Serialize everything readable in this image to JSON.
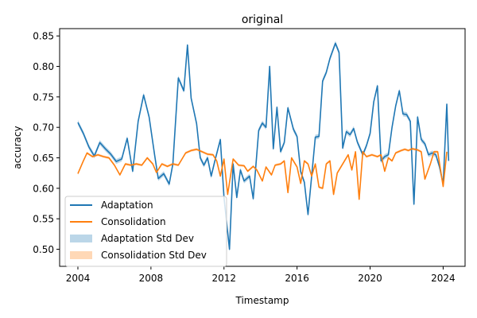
{
  "chart_data": {
    "type": "line",
    "title": "original",
    "xlabel": "Timestamp",
    "ylabel": "accuracy",
    "xlim": [
      2003.0,
      2025.2
    ],
    "ylim": [
      0.472,
      0.862
    ],
    "x_ticks": [
      2004,
      2008,
      2012,
      2016,
      2020,
      2024
    ],
    "y_ticks": [
      0.5,
      0.55,
      0.6,
      0.65,
      0.7,
      0.75,
      0.8,
      0.85
    ],
    "grid": false,
    "legend_position": "lower-left",
    "series": [
      {
        "name": "Adaptation",
        "color": "#1f77b4",
        "points": [
          [
            2004.0,
            0.708
          ],
          [
            2004.3,
            0.69
          ],
          [
            2004.6,
            0.668
          ],
          [
            2004.9,
            0.653
          ],
          [
            2005.2,
            0.675
          ],
          [
            2005.5,
            0.665
          ],
          [
            2005.8,
            0.656
          ],
          [
            2006.1,
            0.644
          ],
          [
            2006.4,
            0.648
          ],
          [
            2006.7,
            0.682
          ],
          [
            2007.0,
            0.628
          ],
          [
            2007.3,
            0.71
          ],
          [
            2007.6,
            0.753
          ],
          [
            2007.9,
            0.717
          ],
          [
            2008.2,
            0.655
          ],
          [
            2008.4,
            0.616
          ],
          [
            2008.7,
            0.624
          ],
          [
            2009.0,
            0.607
          ],
          [
            2009.2,
            0.64
          ],
          [
            2009.5,
            0.781
          ],
          [
            2009.8,
            0.76
          ],
          [
            2010.0,
            0.835
          ],
          [
            2010.2,
            0.748
          ],
          [
            2010.5,
            0.706
          ],
          [
            2010.7,
            0.65
          ],
          [
            2010.9,
            0.638
          ],
          [
            2011.1,
            0.65
          ],
          [
            2011.3,
            0.62
          ],
          [
            2011.5,
            0.645
          ],
          [
            2011.8,
            0.68
          ],
          [
            2012.0,
            0.585
          ],
          [
            2012.3,
            0.5
          ],
          [
            2012.5,
            0.64
          ],
          [
            2012.7,
            0.585
          ],
          [
            2012.9,
            0.63
          ],
          [
            2013.1,
            0.612
          ],
          [
            2013.4,
            0.62
          ],
          [
            2013.6,
            0.583
          ],
          [
            2013.9,
            0.695
          ],
          [
            2014.1,
            0.707
          ],
          [
            2014.3,
            0.7
          ],
          [
            2014.5,
            0.8
          ],
          [
            2014.7,
            0.665
          ],
          [
            2014.9,
            0.733
          ],
          [
            2015.1,
            0.66
          ],
          [
            2015.3,
            0.675
          ],
          [
            2015.5,
            0.732
          ],
          [
            2015.8,
            0.697
          ],
          [
            2016.0,
            0.685
          ],
          [
            2016.2,
            0.627
          ],
          [
            2016.4,
            0.61
          ],
          [
            2016.6,
            0.557
          ],
          [
            2016.8,
            0.62
          ],
          [
            2017.0,
            0.684
          ],
          [
            2017.2,
            0.685
          ],
          [
            2017.4,
            0.776
          ],
          [
            2017.6,
            0.79
          ],
          [
            2017.8,
            0.813
          ],
          [
            2018.1,
            0.838
          ],
          [
            2018.3,
            0.823
          ],
          [
            2018.5,
            0.666
          ],
          [
            2018.7,
            0.693
          ],
          [
            2018.9,
            0.688
          ],
          [
            2019.1,
            0.698
          ],
          [
            2019.3,
            0.676
          ],
          [
            2019.6,
            0.655
          ],
          [
            2019.8,
            0.67
          ],
          [
            2020.0,
            0.69
          ],
          [
            2020.2,
            0.742
          ],
          [
            2020.4,
            0.768
          ],
          [
            2020.6,
            0.645
          ],
          [
            2020.8,
            0.652
          ],
          [
            2021.0,
            0.655
          ],
          [
            2021.2,
            0.7
          ],
          [
            2021.4,
            0.735
          ],
          [
            2021.6,
            0.76
          ],
          [
            2021.8,
            0.722
          ],
          [
            2022.0,
            0.721
          ],
          [
            2022.2,
            0.71
          ],
          [
            2022.4,
            0.574
          ],
          [
            2022.6,
            0.717
          ],
          [
            2022.8,
            0.68
          ],
          [
            2023.0,
            0.673
          ],
          [
            2023.2,
            0.655
          ],
          [
            2023.4,
            0.658
          ],
          [
            2023.6,
            0.655
          ],
          [
            2023.8,
            0.635
          ],
          [
            2024.0,
            0.607
          ],
          [
            2024.2,
            0.738
          ],
          [
            2024.3,
            0.645
          ]
        ]
      },
      {
        "name": "Consolidation",
        "color": "#ff7f0e",
        "points": [
          [
            2004.0,
            0.624
          ],
          [
            2004.3,
            0.645
          ],
          [
            2004.5,
            0.658
          ],
          [
            2004.8,
            0.652
          ],
          [
            2005.1,
            0.655
          ],
          [
            2005.4,
            0.652
          ],
          [
            2005.7,
            0.65
          ],
          [
            2006.0,
            0.638
          ],
          [
            2006.3,
            0.622
          ],
          [
            2006.6,
            0.64
          ],
          [
            2006.9,
            0.638
          ],
          [
            2007.2,
            0.64
          ],
          [
            2007.5,
            0.638
          ],
          [
            2007.8,
            0.65
          ],
          [
            2008.1,
            0.64
          ],
          [
            2008.3,
            0.626
          ],
          [
            2008.6,
            0.64
          ],
          [
            2008.9,
            0.636
          ],
          [
            2009.2,
            0.64
          ],
          [
            2009.5,
            0.638
          ],
          [
            2009.9,
            0.658
          ],
          [
            2010.2,
            0.662
          ],
          [
            2010.5,
            0.664
          ],
          [
            2010.8,
            0.66
          ],
          [
            2011.1,
            0.656
          ],
          [
            2011.4,
            0.655
          ],
          [
            2011.6,
            0.645
          ],
          [
            2011.8,
            0.62
          ],
          [
            2012.0,
            0.648
          ],
          [
            2012.2,
            0.59
          ],
          [
            2012.5,
            0.648
          ],
          [
            2012.8,
            0.638
          ],
          [
            2013.1,
            0.637
          ],
          [
            2013.3,
            0.628
          ],
          [
            2013.6,
            0.636
          ],
          [
            2013.8,
            0.63
          ],
          [
            2014.1,
            0.612
          ],
          [
            2014.3,
            0.635
          ],
          [
            2014.6,
            0.622
          ],
          [
            2014.8,
            0.638
          ],
          [
            2015.1,
            0.64
          ],
          [
            2015.3,
            0.645
          ],
          [
            2015.5,
            0.593
          ],
          [
            2015.7,
            0.65
          ],
          [
            2016.0,
            0.635
          ],
          [
            2016.2,
            0.608
          ],
          [
            2016.4,
            0.645
          ],
          [
            2016.6,
            0.64
          ],
          [
            2016.8,
            0.62
          ],
          [
            2017.0,
            0.64
          ],
          [
            2017.2,
            0.602
          ],
          [
            2017.4,
            0.6
          ],
          [
            2017.6,
            0.64
          ],
          [
            2017.8,
            0.645
          ],
          [
            2018.0,
            0.59
          ],
          [
            2018.2,
            0.625
          ],
          [
            2018.5,
            0.64
          ],
          [
            2018.8,
            0.655
          ],
          [
            2019.0,
            0.63
          ],
          [
            2019.2,
            0.66
          ],
          [
            2019.4,
            0.582
          ],
          [
            2019.6,
            0.66
          ],
          [
            2019.8,
            0.652
          ],
          [
            2020.1,
            0.655
          ],
          [
            2020.4,
            0.652
          ],
          [
            2020.6,
            0.655
          ],
          [
            2020.8,
            0.628
          ],
          [
            2021.0,
            0.65
          ],
          [
            2021.2,
            0.645
          ],
          [
            2021.4,
            0.658
          ],
          [
            2021.7,
            0.662
          ],
          [
            2021.9,
            0.664
          ],
          [
            2022.1,
            0.662
          ],
          [
            2022.3,
            0.665
          ],
          [
            2022.6,
            0.663
          ],
          [
            2022.8,
            0.66
          ],
          [
            2023.0,
            0.615
          ],
          [
            2023.3,
            0.64
          ],
          [
            2023.5,
            0.66
          ],
          [
            2023.7,
            0.66
          ],
          [
            2024.0,
            0.603
          ],
          [
            2024.2,
            0.66
          ]
        ]
      }
    ],
    "bands": [
      {
        "name": "Adaptation Std Dev",
        "color": "#1f77b4",
        "opacity": 0.3
      },
      {
        "name": "Consolidation Std Dev",
        "color": "#ff7f0e",
        "opacity": 0.3
      }
    ]
  }
}
